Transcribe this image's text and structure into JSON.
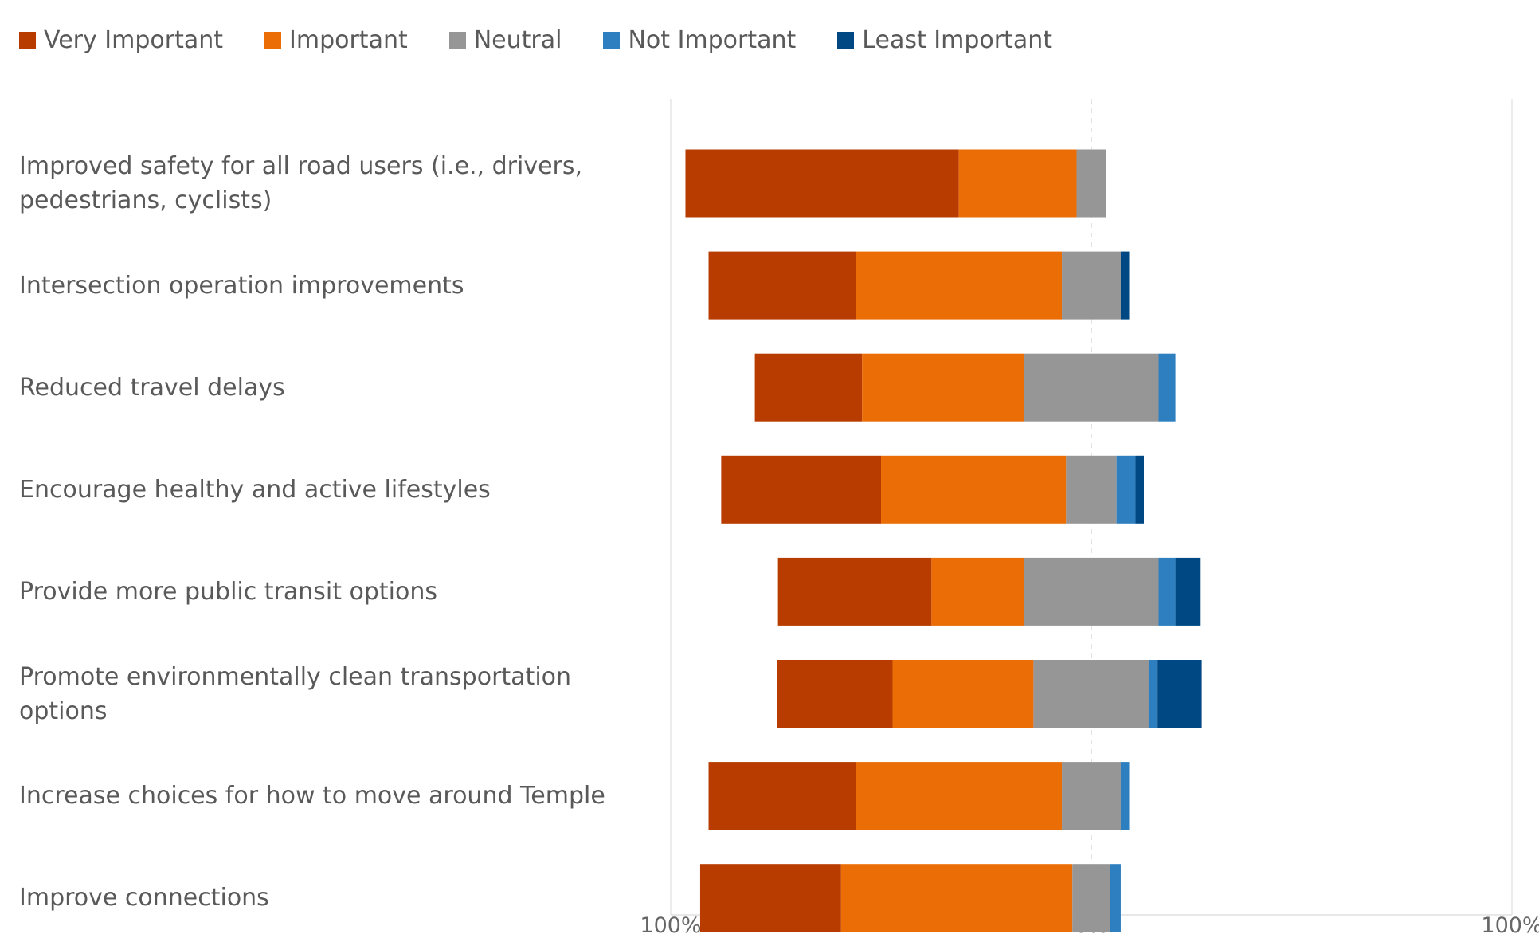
{
  "chart_data": {
    "type": "bar",
    "orientation": "horizontal",
    "stacking": "diverging",
    "title": "",
    "xlabel": "",
    "ylabel": "",
    "xlim": [
      -100,
      100
    ],
    "x_ticks": [
      {
        "value": -100,
        "label": "100%"
      },
      {
        "value": 0,
        "label": "0%"
      },
      {
        "value": 100,
        "label": "100%"
      }
    ],
    "legend_position": "top-left",
    "grid": false,
    "categories": [
      "Improved safety for all road users (i.e., drivers, pedestrians, cyclists)",
      "Intersection operation improvements",
      "Reduced travel delays",
      "Encourage healthy and active lifestyles",
      "Provide more public transit options",
      "Promote environmentally clean transportation options",
      "Increase choices for how to move around Temple",
      "Improve connections"
    ],
    "series": [
      {
        "name": "Very Important",
        "color": "#b83c00",
        "values": [
          65,
          35,
          25.5,
          38,
          36.5,
          27.5,
          35,
          33.5
        ]
      },
      {
        "name": "Important",
        "color": "#eb6d05",
        "values": [
          28,
          49,
          38.5,
          44,
          22,
          33.5,
          49,
          55
        ]
      },
      {
        "name": "Neutral",
        "color": "#969696",
        "values": [
          7,
          14,
          32,
          12,
          32,
          27.5,
          14,
          9
        ]
      },
      {
        "name": "Not Important",
        "color": "#2e7fbf",
        "values": [
          0,
          0,
          4,
          4.5,
          4,
          2,
          2,
          2.5
        ]
      },
      {
        "name": "Least Important",
        "color": "#004884",
        "values": [
          0,
          2,
          0,
          2,
          6,
          10.5,
          0,
          0
        ]
      }
    ]
  }
}
